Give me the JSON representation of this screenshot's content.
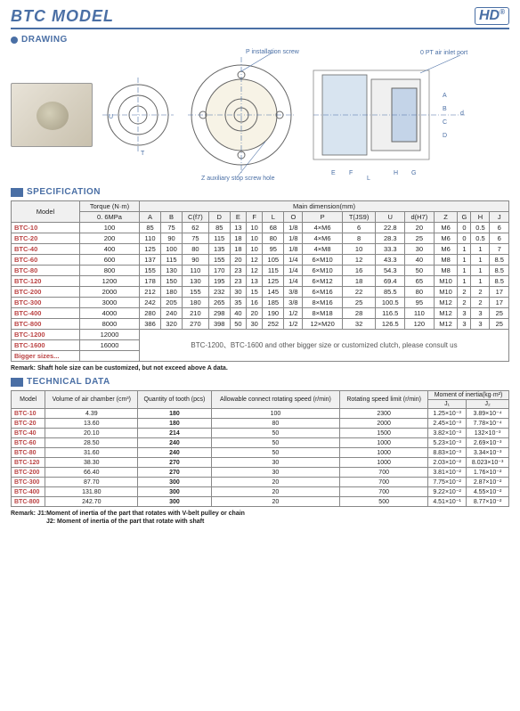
{
  "header": {
    "title": "BTC MODEL",
    "logo_text": "HD",
    "logo_reg": "®"
  },
  "sections": {
    "drawing": "DRAWING",
    "specification": "SPECIFICATION",
    "technical_data": "TECHNICAL DATA"
  },
  "drawing_labels": {
    "p_hole": "P installation screw hole",
    "air_inlet": "0 PT air inlet port",
    "z_hole": "Z auxiliary stop screw hole"
  },
  "spec": {
    "headers": {
      "model": "Model",
      "torque": "Torque (N·m)",
      "torque_sub": "0. 6MPa",
      "main_dim": "Main dimension(mm)",
      "cols": [
        "A",
        "B",
        "C(f7)",
        "D",
        "E",
        "F",
        "L",
        "O",
        "P",
        "T(JS9)",
        "U",
        "d(H7)",
        "Z",
        "G",
        "H",
        "J"
      ]
    },
    "rows": [
      {
        "m": "BTC-10",
        "t": "100",
        "v": [
          "85",
          "75",
          "62",
          "85",
          "13",
          "10",
          "68",
          "1/8",
          "4×M6",
          "6",
          "22.8",
          "20",
          "M6",
          "0",
          "0.5",
          "6"
        ]
      },
      {
        "m": "BTC-20",
        "t": "200",
        "v": [
          "110",
          "90",
          "75",
          "115",
          "18",
          "10",
          "80",
          "1/8",
          "4×M6",
          "8",
          "28.3",
          "25",
          "M6",
          "0",
          "0.5",
          "6"
        ]
      },
      {
        "m": "BTC-40",
        "t": "400",
        "v": [
          "125",
          "100",
          "80",
          "135",
          "18",
          "10",
          "95",
          "1/8",
          "4×M8",
          "10",
          "33.3",
          "30",
          "M6",
          "1",
          "1",
          "7"
        ]
      },
      {
        "m": "BTC-60",
        "t": "600",
        "v": [
          "137",
          "115",
          "90",
          "155",
          "20",
          "12",
          "105",
          "1/4",
          "6×M10",
          "12",
          "43.3",
          "40",
          "M8",
          "1",
          "1",
          "8.5"
        ]
      },
      {
        "m": "BTC-80",
        "t": "800",
        "v": [
          "155",
          "130",
          "110",
          "170",
          "23",
          "12",
          "115",
          "1/4",
          "6×M10",
          "16",
          "54.3",
          "50",
          "M8",
          "1",
          "1",
          "8.5"
        ]
      },
      {
        "m": "BTC-120",
        "t": "1200",
        "v": [
          "178",
          "150",
          "130",
          "195",
          "23",
          "13",
          "125",
          "1/4",
          "6×M12",
          "18",
          "69.4",
          "65",
          "M10",
          "1",
          "1",
          "8.5"
        ]
      },
      {
        "m": "BTC-200",
        "t": "2000",
        "v": [
          "212",
          "180",
          "155",
          "232",
          "30",
          "15",
          "145",
          "3/8",
          "6×M16",
          "22",
          "85.5",
          "80",
          "M10",
          "2",
          "2",
          "17"
        ]
      },
      {
        "m": "BTC-300",
        "t": "3000",
        "v": [
          "242",
          "205",
          "180",
          "265",
          "35",
          "16",
          "185",
          "3/8",
          "8×M16",
          "25",
          "100.5",
          "95",
          "M12",
          "2",
          "2",
          "17"
        ]
      },
      {
        "m": "BTC-400",
        "t": "4000",
        "v": [
          "280",
          "240",
          "210",
          "298",
          "40",
          "20",
          "190",
          "1/2",
          "8×M18",
          "28",
          "116.5",
          "110",
          "M12",
          "3",
          "3",
          "25"
        ]
      },
      {
        "m": "BTC-800",
        "t": "8000",
        "v": [
          "386",
          "320",
          "270",
          "398",
          "50",
          "30",
          "252",
          "1/2",
          "12×M20",
          "32",
          "126.5",
          "120",
          "M12",
          "3",
          "3",
          "25"
        ]
      }
    ],
    "extra_rows": [
      {
        "m": "BTC-1200",
        "t": "12000"
      },
      {
        "m": "BTC-1600",
        "t": "16000"
      }
    ],
    "bigger_sizes": "Bigger sizes...",
    "consult": "BTC-1200、BTC-1600 and other bigger size or customized clutch, please consult us",
    "note": "Remark: Shaft hole size can be customized, but not exceed above A data."
  },
  "tech": {
    "headers": {
      "model": "Model",
      "air": "Volume of air chamber (cm³)",
      "teeth": "Quantity of tooth (pcs)",
      "rotspeed": "Allowable connect rotating speed (r/min)",
      "limit": "Rotating speed limit (r/min)",
      "inertia": "Moment of inertia(kg·m²)",
      "j1": "J₁",
      "j2": "J₂"
    },
    "rows": [
      {
        "m": "BTC-10",
        "v": [
          "4.39",
          "180",
          "100",
          "2300",
          "1.25×10⁻³",
          "3.89×10⁻⁴"
        ]
      },
      {
        "m": "BTC-20",
        "v": [
          "13.60",
          "180",
          "80",
          "2000",
          "2.45×10⁻³",
          "7.78×10⁻⁴"
        ]
      },
      {
        "m": "BTC-40",
        "v": [
          "20.10",
          "214",
          "50",
          "1500",
          "3.82×10⁻³",
          "132×10⁻³"
        ]
      },
      {
        "m": "BTC-60",
        "v": [
          "28.50",
          "240",
          "50",
          "1000",
          "5.23×10⁻³",
          "2.69×10⁻³"
        ]
      },
      {
        "m": "BTC-80",
        "v": [
          "31.60",
          "240",
          "50",
          "1000",
          "8.83×10⁻³",
          "3.34×10⁻³"
        ]
      },
      {
        "m": "BTC-120",
        "v": [
          "38.30",
          "270",
          "30",
          "1000",
          "2.03×10⁻²",
          "8.023×10⁻³"
        ]
      },
      {
        "m": "BTC-200",
        "v": [
          "66.40",
          "270",
          "30",
          "700",
          "3.81×10⁻²",
          "1.76×10⁻²"
        ]
      },
      {
        "m": "BTC-300",
        "v": [
          "87.70",
          "300",
          "20",
          "700",
          "7.75×10⁻²",
          "2.87×10⁻²"
        ]
      },
      {
        "m": "BTC-400",
        "v": [
          "131.80",
          "300",
          "20",
          "700",
          "9.22×10⁻²",
          "4.55×10⁻²"
        ]
      },
      {
        "m": "BTC-800",
        "v": [
          "242.70",
          "300",
          "20",
          "500",
          "4.51×10⁻¹",
          "8.77×10⁻²"
        ]
      }
    ],
    "remark1": "Remark:    J1:Moment of inertia of the part that rotates with V-belt pulley or chain",
    "remark2": "J2: Moment of inertia of the part that rotate with shaft"
  }
}
